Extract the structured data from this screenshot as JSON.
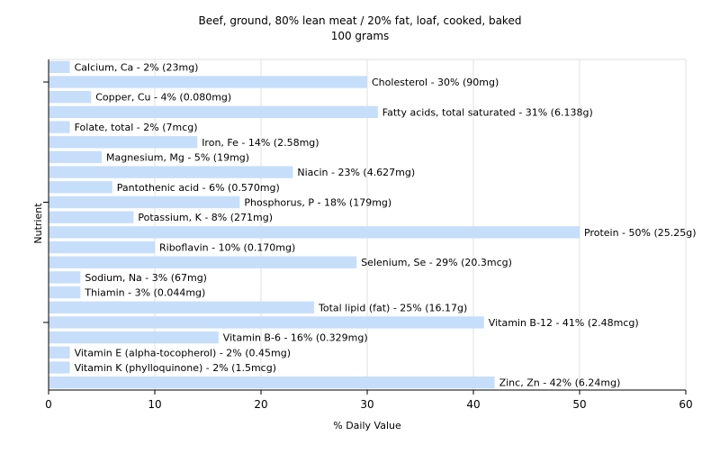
{
  "chart_data": {
    "type": "bar",
    "orientation": "horizontal",
    "title": "Beef, ground, 80% lean meat / 20% fat, loaf, cooked, baked",
    "subtitle": "100 grams",
    "xlabel": "% Daily Value",
    "ylabel": "Nutrient",
    "xlim": [
      0,
      60
    ],
    "xticks": [
      0,
      10,
      20,
      30,
      40,
      50,
      60
    ],
    "grid": true,
    "bar_color": "#c6defa",
    "bars": [
      {
        "label": "Calcium, Ca - 2% (23mg)",
        "value": 2
      },
      {
        "label": "Cholesterol - 30% (90mg)",
        "value": 30
      },
      {
        "label": "Copper, Cu - 4% (0.080mg)",
        "value": 4
      },
      {
        "label": "Fatty acids, total saturated - 31% (6.138g)",
        "value": 31
      },
      {
        "label": "Folate, total - 2% (7mcg)",
        "value": 2
      },
      {
        "label": "Iron, Fe - 14% (2.58mg)",
        "value": 14
      },
      {
        "label": "Magnesium, Mg - 5% (19mg)",
        "value": 5
      },
      {
        "label": "Niacin - 23% (4.627mg)",
        "value": 23
      },
      {
        "label": "Pantothenic acid - 6% (0.570mg)",
        "value": 6
      },
      {
        "label": "Phosphorus, P - 18% (179mg)",
        "value": 18
      },
      {
        "label": "Potassium, K - 8% (271mg)",
        "value": 8
      },
      {
        "label": "Protein - 50% (25.25g)",
        "value": 50
      },
      {
        "label": "Riboflavin - 10% (0.170mg)",
        "value": 10
      },
      {
        "label": "Selenium, Se - 29% (20.3mcg)",
        "value": 29
      },
      {
        "label": "Sodium, Na - 3% (67mg)",
        "value": 3
      },
      {
        "label": "Thiamin - 3% (0.044mg)",
        "value": 3
      },
      {
        "label": "Total lipid (fat) - 25% (16.17g)",
        "value": 25
      },
      {
        "label": "Vitamin B-12 - 41% (2.48mcg)",
        "value": 41
      },
      {
        "label": "Vitamin B-6 - 16% (0.329mg)",
        "value": 16
      },
      {
        "label": "Vitamin E (alpha-tocopherol) - 2% (0.45mg)",
        "value": 2
      },
      {
        "label": "Vitamin K (phylloquinone) - 2% (1.5mcg)",
        "value": 2
      },
      {
        "label": "Zinc, Zn - 42% (6.24mg)",
        "value": 42
      }
    ]
  }
}
